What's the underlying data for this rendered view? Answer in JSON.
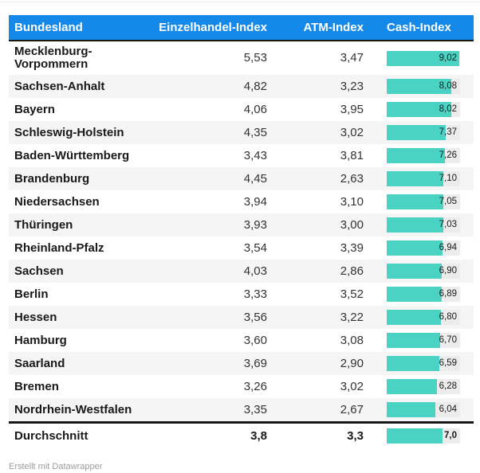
{
  "chart_data": {
    "type": "table",
    "columns": [
      "Bundesland",
      "Einzelhandel-Index",
      "ATM-Index",
      "Cash-Index"
    ],
    "bar_column": "Cash-Index",
    "bar_axis_max": 9.15,
    "value_decimals": 2,
    "rows": [
      {
        "bundesland": "Mecklenburg-Vorpommern",
        "einzelhandel": 5.53,
        "atm": 3.47,
        "cash": 9.02
      },
      {
        "bundesland": "Sachsen-Anhalt",
        "einzelhandel": 4.82,
        "atm": 3.23,
        "cash": 8.08
      },
      {
        "bundesland": "Bayern",
        "einzelhandel": 4.06,
        "atm": 3.95,
        "cash": 8.02
      },
      {
        "bundesland": "Schleswig-Holstein",
        "einzelhandel": 4.35,
        "atm": 3.02,
        "cash": 7.37
      },
      {
        "bundesland": "Baden-Württemberg",
        "einzelhandel": 3.43,
        "atm": 3.81,
        "cash": 7.26
      },
      {
        "bundesland": "Brandenburg",
        "einzelhandel": 4.45,
        "atm": 2.63,
        "cash": 7.1
      },
      {
        "bundesland": "Niedersachsen",
        "einzelhandel": 3.94,
        "atm": 3.1,
        "cash": 7.05
      },
      {
        "bundesland": "Thüringen",
        "einzelhandel": 3.93,
        "atm": 3.0,
        "cash": 7.03
      },
      {
        "bundesland": "Rheinland-Pfalz",
        "einzelhandel": 3.54,
        "atm": 3.39,
        "cash": 6.94
      },
      {
        "bundesland": "Sachsen",
        "einzelhandel": 4.03,
        "atm": 2.86,
        "cash": 6.9
      },
      {
        "bundesland": "Berlin",
        "einzelhandel": 3.33,
        "atm": 3.52,
        "cash": 6.89
      },
      {
        "bundesland": "Hessen",
        "einzelhandel": 3.56,
        "atm": 3.22,
        "cash": 6.8
      },
      {
        "bundesland": "Hamburg",
        "einzelhandel": 3.6,
        "atm": 3.08,
        "cash": 6.7
      },
      {
        "bundesland": "Saarland",
        "einzelhandel": 3.69,
        "atm": 2.9,
        "cash": 6.59
      },
      {
        "bundesland": "Bremen",
        "einzelhandel": 3.26,
        "atm": 3.02,
        "cash": 6.28
      },
      {
        "bundesland": "Nordrhein-Westfalen",
        "einzelhandel": 3.35,
        "atm": 2.67,
        "cash": 6.04
      }
    ],
    "summary_row": {
      "bundesland": "Durchschnitt",
      "einzelhandel": 3.8,
      "atm": 3.3,
      "cash": 7.0,
      "value_decimals": 1
    }
  },
  "colors": {
    "header_bg": "#1489e9",
    "header_text": "#ffffff",
    "bar_fill": "#4ad2c2",
    "bar_track": "#ececec",
    "stripe_bg": "#f5f5f5",
    "rule_dark": "#161616"
  },
  "attribution": "Erstellt mit Datawrapper"
}
